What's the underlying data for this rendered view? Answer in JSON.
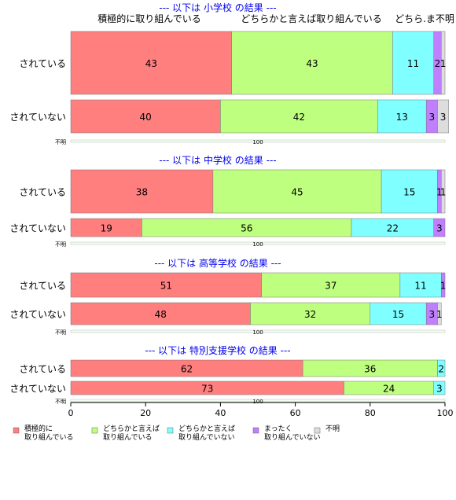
{
  "chart_data": {
    "type": "bar",
    "orientation": "horizontal",
    "stacked": true,
    "xlim": [
      0,
      100
    ],
    "xticks": [
      0,
      20,
      40,
      60,
      80,
      100
    ],
    "categories": [
      "積極的に\n取り組んでいる",
      "どちらかと言えば\n取り組んでいる",
      "どちらかと言えば\n取り組んでいない",
      "まったく\n取り組んでいない",
      "不明"
    ],
    "colors": [
      "#ff7f7f",
      "#bfff7f",
      "#7fffff",
      "#bf7fff",
      "#dddddd"
    ],
    "category_headers": [
      "積極的に取り組んでいる",
      "どちらかと言えば取り組んでいる",
      "どちら.ま不明"
    ],
    "legend_position": "bottom",
    "groups": [
      {
        "title": "--- 以下は 小学校 の結果 ---",
        "rows": [
          {
            "label": "されている",
            "values": [
              43,
              43,
              11,
              2,
              1
            ]
          },
          {
            "label": "されていない",
            "values": [
              40,
              42,
              13,
              3,
              3
            ]
          }
        ],
        "total_label": "不明",
        "total_value": "100"
      },
      {
        "title": "--- 以下は 中学校 の結果 ---",
        "rows": [
          {
            "label": "されている",
            "values": [
              38,
              45,
              15,
              1,
              1
            ]
          },
          {
            "label": "されていない",
            "values": [
              19,
              56,
              22,
              3,
              0
            ]
          }
        ],
        "total_label": "不明",
        "total_value": "100"
      },
      {
        "title": "--- 以下は 高等学校 の結果 ---",
        "rows": [
          {
            "label": "されている",
            "values": [
              51,
              37,
              11,
              1,
              0
            ]
          },
          {
            "label": "されていない",
            "values": [
              48,
              32,
              15,
              3,
              1
            ]
          }
        ],
        "total_label": "不明",
        "total_value": "100"
      },
      {
        "title": "--- 以下は 特別支援学校 の結果 ---",
        "rows": [
          {
            "label": "されている",
            "values": [
              62,
              36,
              2,
              0,
              0
            ]
          },
          {
            "label": "されていない",
            "values": [
              73,
              24,
              3,
              0,
              0
            ]
          }
        ],
        "total_label": "不明",
        "total_value": "100"
      }
    ]
  }
}
